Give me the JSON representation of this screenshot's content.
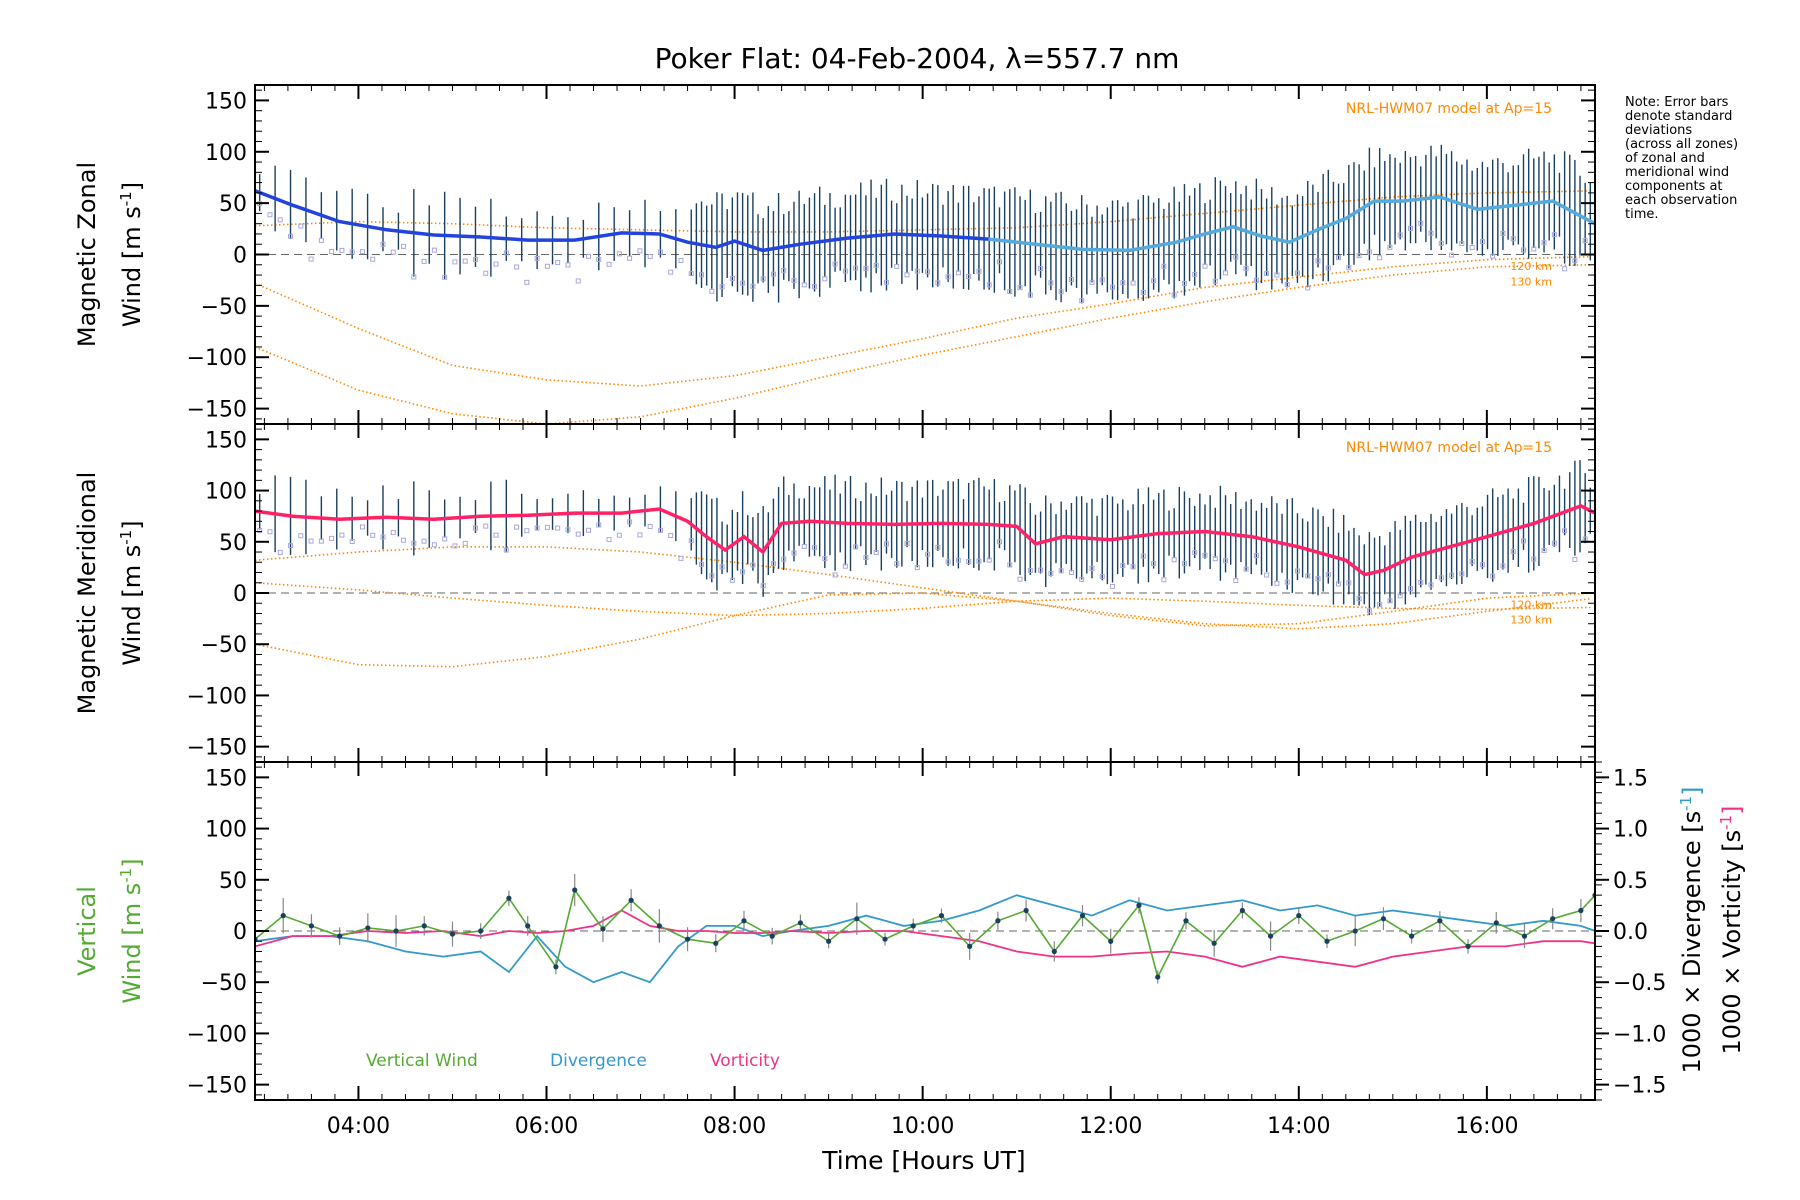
{
  "title": "Poker Flat: 04-Feb-2004, λ=557.7 nm",
  "note_lines": [
    "Note: Error bars",
    "denote standard",
    "deviations",
    "(across all zones)",
    "of zonal and",
    "meridional wind",
    "components at",
    "each observation",
    "time."
  ],
  "x_axis": {
    "label": "Time [Hours UT]",
    "range_hours": [
      2.9,
      17.15
    ],
    "ticks": [
      4,
      6,
      8,
      10,
      12,
      14,
      16
    ],
    "tick_labels": [
      "04:00",
      "06:00",
      "08:00",
      "10:00",
      "12:00",
      "14:00",
      "16:00"
    ]
  },
  "y_ticks": [
    150,
    100,
    50,
    0,
    -50,
    -100,
    -150
  ],
  "y_tick_labels": [
    "150",
    "100",
    "50",
    "0",
    "−50",
    "−100",
    "−150"
  ],
  "right_ticks": [
    1.5,
    1.0,
    0.5,
    0.0,
    -0.5,
    -1.0,
    -1.5
  ],
  "right_tick_labels": [
    "1.5",
    "1.0",
    "0.5",
    "0.0",
    "−0.5",
    "−1.0",
    "−1.5"
  ],
  "colors": {
    "zonal": "#2244dd",
    "zonal_light": "#55aadd",
    "meridional": "#ff2266",
    "model": "#ff8800",
    "vertical": "#55aa33",
    "divergence": "#3399cc",
    "vorticity": "#ee3388",
    "errorbar": "#1a4060",
    "scatter": "#a8a8dd"
  },
  "chart_data": [
    {
      "type": "line",
      "panel": "zonal",
      "ylabel_line1": "Magnetic Zonal",
      "ylabel_line2": "Wind [m s",
      "ylabel_exp": "-1",
      "ylabel_end": "]",
      "ylim": [
        -165,
        165
      ],
      "model_label": "NRL-HWM07 model at Ap=15",
      "model_alt_labels": [
        "120 km",
        "130 km"
      ],
      "series": [
        {
          "name": "Zonal wind",
          "x": [
            2.9,
            3.3,
            3.8,
            4.3,
            4.8,
            5.3,
            5.8,
            6.3,
            6.8,
            7.2,
            7.5,
            7.8,
            8.0,
            8.3,
            8.7,
            9.2,
            9.7,
            10.2,
            10.7,
            11.2,
            11.7,
            12.2,
            12.7,
            13.0,
            13.3,
            13.6,
            13.9,
            14.2,
            14.5,
            14.8,
            15.1,
            15.5,
            15.9,
            16.3,
            16.7,
            17.15
          ],
          "values": [
            62,
            48,
            32,
            24,
            19,
            17,
            14,
            14,
            21,
            20,
            12,
            7,
            13,
            4,
            10,
            16,
            20,
            18,
            15,
            10,
            5,
            4,
            12,
            20,
            27,
            18,
            12,
            24,
            35,
            52,
            52,
            56,
            44,
            48,
            52,
            30
          ]
        },
        {
          "name": "Model 120 km",
          "x": [
            2.9,
            4,
            5,
            6,
            7,
            8,
            9,
            10,
            11,
            12,
            13,
            14,
            15,
            16,
            17.15
          ],
          "values": [
            -28,
            -72,
            -108,
            -122,
            -128,
            -118,
            -100,
            -82,
            -62,
            -48,
            -32,
            -22,
            -12,
            -5,
            -2
          ]
        },
        {
          "name": "Model 130 km",
          "x": [
            2.9,
            4,
            5,
            6,
            7,
            8,
            9,
            10,
            11,
            12,
            13,
            14,
            15,
            16,
            17.15
          ],
          "values": [
            -90,
            -132,
            -155,
            -165,
            -158,
            -140,
            -118,
            -98,
            -80,
            -62,
            -46,
            -32,
            -20,
            -12,
            -10
          ]
        },
        {
          "name": "Model upper",
          "x": [
            2.9,
            4,
            5,
            6,
            7,
            8,
            9,
            10,
            11,
            12,
            13,
            14,
            15,
            16,
            17.15
          ],
          "values": [
            28,
            32,
            30,
            26,
            24,
            22,
            22,
            24,
            26,
            32,
            40,
            48,
            56,
            60,
            62
          ]
        }
      ]
    },
    {
      "type": "line",
      "panel": "meridional",
      "ylabel_line1": "Magnetic Meridional",
      "ylabel_line2": "Wind [m s",
      "ylabel_exp": "-1",
      "ylabel_end": "]",
      "ylim": [
        -165,
        165
      ],
      "model_label": "NRL-HWM07 model at Ap=15",
      "model_alt_labels": [
        "120 km",
        "130 km"
      ],
      "series": [
        {
          "name": "Meridional wind",
          "x": [
            2.9,
            3.3,
            3.8,
            4.3,
            4.8,
            5.3,
            5.8,
            6.3,
            6.8,
            7.2,
            7.5,
            7.7,
            7.9,
            8.1,
            8.3,
            8.5,
            8.8,
            9.2,
            9.7,
            10.2,
            10.7,
            11.0,
            11.2,
            11.5,
            12.0,
            12.5,
            13.0,
            13.5,
            14.0,
            14.5,
            14.7,
            14.9,
            15.2,
            15.6,
            16.0,
            16.5,
            17.0,
            17.15
          ],
          "values": [
            80,
            75,
            72,
            74,
            72,
            75,
            76,
            78,
            78,
            82,
            70,
            55,
            42,
            55,
            40,
            68,
            70,
            68,
            67,
            68,
            67,
            65,
            48,
            55,
            52,
            58,
            60,
            55,
            45,
            32,
            18,
            22,
            35,
            45,
            55,
            68,
            85,
            78
          ]
        },
        {
          "name": "Model 120 km",
          "x": [
            2.9,
            4,
            5,
            6,
            7,
            8,
            9,
            10,
            11,
            12,
            13,
            14,
            15,
            16,
            17.15
          ],
          "values": [
            -50,
            -70,
            -72,
            -62,
            -45,
            -22,
            -2,
            0,
            -8,
            -22,
            -32,
            -30,
            -18,
            -5,
            0
          ]
        },
        {
          "name": "Model 130 km",
          "x": [
            2.9,
            4,
            5,
            6,
            7,
            8,
            9,
            10,
            11,
            12,
            13,
            14,
            15,
            16,
            17.15
          ],
          "values": [
            10,
            3,
            -5,
            -12,
            -18,
            -22,
            -20,
            -15,
            -8,
            -5,
            -8,
            -12,
            -15,
            -16,
            -14
          ]
        },
        {
          "name": "Model upper",
          "x": [
            2.9,
            4,
            5,
            6,
            7,
            8,
            9,
            10,
            11,
            12,
            13,
            14,
            15,
            16,
            17.15
          ],
          "values": [
            32,
            40,
            45,
            45,
            40,
            30,
            18,
            5,
            -8,
            -20,
            -30,
            -35,
            -30,
            -18,
            -5
          ]
        }
      ]
    },
    {
      "type": "line",
      "panel": "vertical",
      "ylabel_line1": "Vertical",
      "ylabel_line2": "Wind [m s",
      "ylabel_exp": "-1",
      "ylabel_end": "]",
      "ylim": [
        -165,
        165
      ],
      "right_label_div": "1000 × Divergence [s",
      "right_label_vor": "1000 × Vorticity [s",
      "right_exp": "-1",
      "right_end": "]",
      "right_ylim": [
        -1.65,
        1.65
      ],
      "legend": [
        "Vertical Wind",
        "Divergence",
        "Vorticity"
      ],
      "series": [
        {
          "name": "Vertical Wind",
          "x": [
            2.9,
            3.2,
            3.5,
            3.8,
            4.1,
            4.4,
            4.7,
            5.0,
            5.3,
            5.6,
            5.8,
            6.1,
            6.3,
            6.6,
            6.9,
            7.2,
            7.5,
            7.8,
            8.1,
            8.4,
            8.7,
            9.0,
            9.3,
            9.6,
            9.9,
            10.2,
            10.5,
            10.8,
            11.1,
            11.4,
            11.7,
            12.0,
            12.3,
            12.5,
            12.8,
            13.1,
            13.4,
            13.7,
            14.0,
            14.3,
            14.6,
            14.9,
            15.2,
            15.5,
            15.8,
            16.1,
            16.4,
            16.7,
            17.0,
            17.15
          ],
          "values": [
            -8,
            15,
            5,
            -5,
            3,
            0,
            5,
            -3,
            0,
            32,
            5,
            -35,
            40,
            2,
            30,
            5,
            -8,
            -12,
            10,
            -5,
            8,
            -10,
            12,
            -8,
            5,
            15,
            -15,
            10,
            20,
            -20,
            15,
            -10,
            25,
            -45,
            10,
            -12,
            20,
            -5,
            15,
            -10,
            0,
            12,
            -5,
            10,
            -15,
            8,
            -5,
            12,
            20,
            35
          ]
        },
        {
          "name": "Divergence",
          "x": [
            2.9,
            3.3,
            3.7,
            4.1,
            4.5,
            4.9,
            5.3,
            5.6,
            5.9,
            6.2,
            6.5,
            6.8,
            7.1,
            7.4,
            7.7,
            8.0,
            8.3,
            8.6,
            9.0,
            9.4,
            9.8,
            10.2,
            10.6,
            11.0,
            11.4,
            11.8,
            12.2,
            12.6,
            13.0,
            13.4,
            13.8,
            14.2,
            14.6,
            15.0,
            15.4,
            15.8,
            16.2,
            16.6,
            17.0,
            17.15
          ],
          "values": [
            -0.1,
            -0.05,
            -0.05,
            -0.1,
            -0.2,
            -0.25,
            -0.2,
            -0.4,
            -0.05,
            -0.35,
            -0.5,
            -0.4,
            -0.5,
            -0.15,
            0.05,
            0.05,
            -0.05,
            0.0,
            0.05,
            0.15,
            0.05,
            0.1,
            0.2,
            0.35,
            0.25,
            0.15,
            0.3,
            0.2,
            0.25,
            0.3,
            0.2,
            0.25,
            0.15,
            0.2,
            0.15,
            0.1,
            0.05,
            0.1,
            0.05,
            0.0
          ]
        },
        {
          "name": "Vorticity",
          "x": [
            2.9,
            3.3,
            3.7,
            4.1,
            4.5,
            4.9,
            5.3,
            5.6,
            5.9,
            6.2,
            6.5,
            6.8,
            7.1,
            7.4,
            7.7,
            8.0,
            8.3,
            8.6,
            9.0,
            9.4,
            9.8,
            10.2,
            10.6,
            11.0,
            11.4,
            11.8,
            12.2,
            12.6,
            13.0,
            13.4,
            13.8,
            14.2,
            14.6,
            15.0,
            15.4,
            15.8,
            16.2,
            16.6,
            17.0,
            17.15
          ],
          "values": [
            -0.15,
            -0.05,
            -0.05,
            0.0,
            -0.02,
            0.0,
            -0.05,
            0.0,
            -0.02,
            0.0,
            0.05,
            0.2,
            0.05,
            0.0,
            0.0,
            -0.02,
            -0.02,
            0.0,
            -0.02,
            0.0,
            0.0,
            -0.05,
            -0.1,
            -0.2,
            -0.25,
            -0.25,
            -0.22,
            -0.2,
            -0.25,
            -0.35,
            -0.25,
            -0.3,
            -0.35,
            -0.25,
            -0.2,
            -0.15,
            -0.15,
            -0.1,
            -0.1,
            -0.12
          ]
        }
      ]
    }
  ]
}
